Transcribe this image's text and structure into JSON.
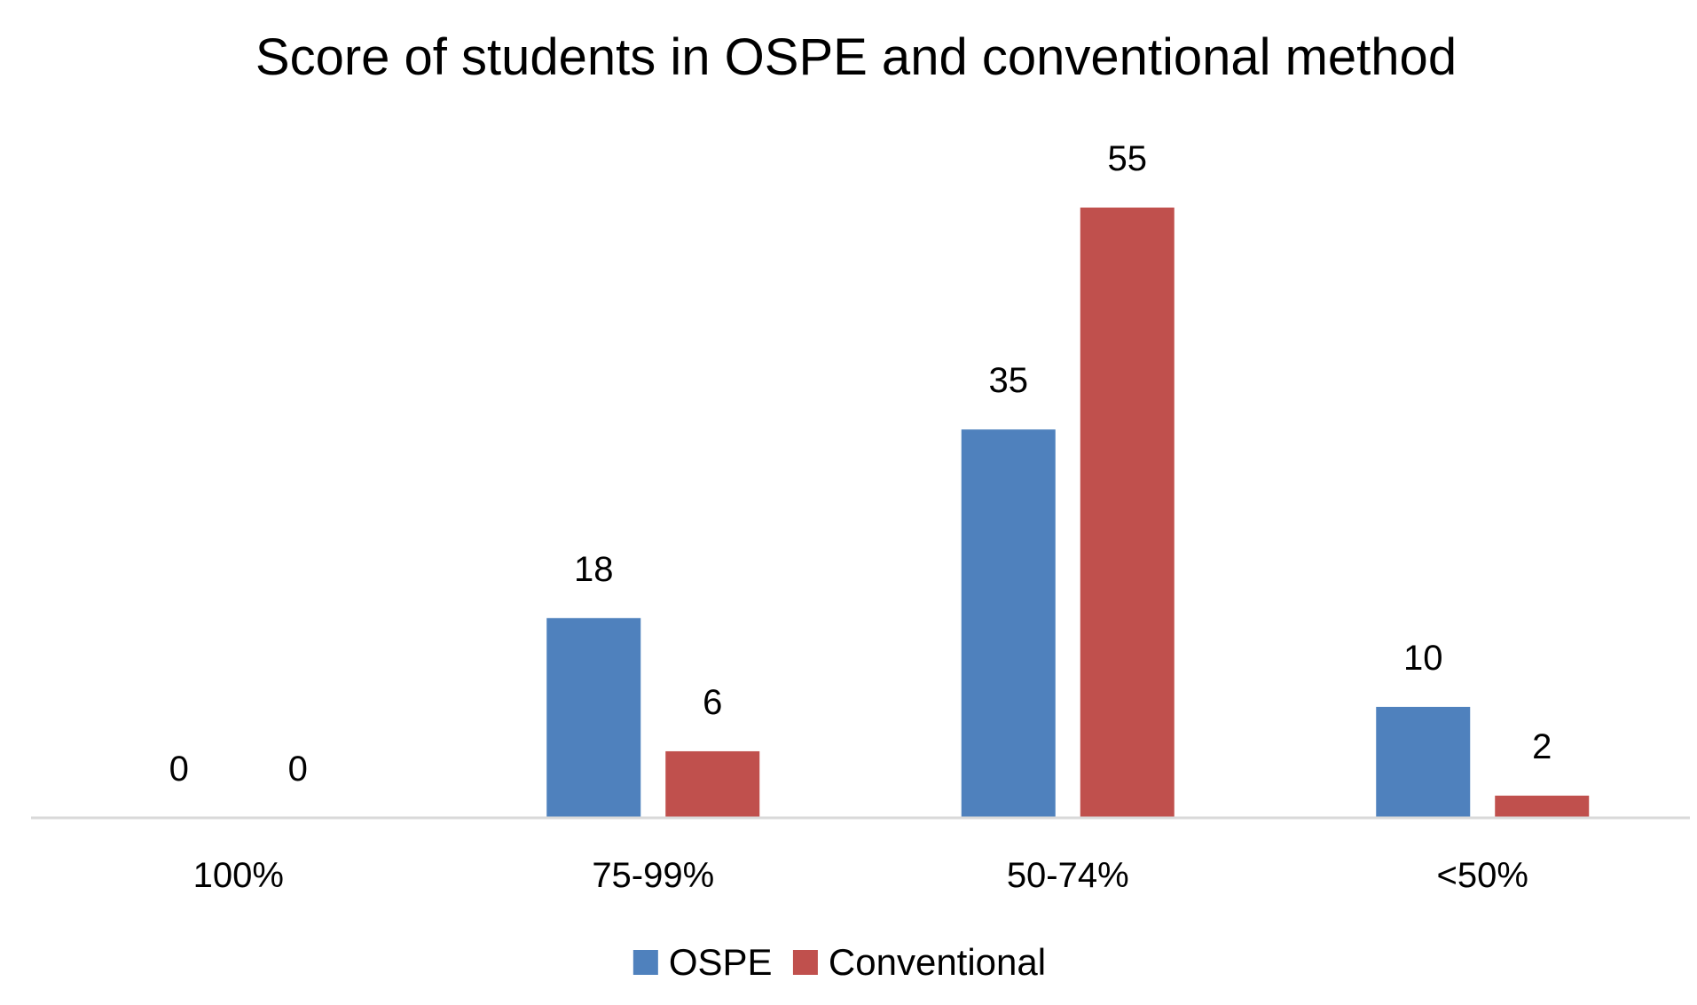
{
  "chart_data": {
    "type": "bar",
    "title": "Score of students in OSPE and conventional method",
    "categories": [
      "100%",
      "75-99%",
      "50-74%",
      "<50%"
    ],
    "series": [
      {
        "name": "OSPE",
        "color": "#4F81BD",
        "values": [
          0,
          18,
          35,
          10
        ]
      },
      {
        "name": "Conventional",
        "color": "#C0504D",
        "values": [
          0,
          6,
          55,
          2
        ]
      }
    ],
    "xlabel": "",
    "ylabel": "",
    "ylim": [
      0,
      60
    ],
    "data_labels": true,
    "grid": false,
    "legend": "bottom-center",
    "axis_color": "#D9D9D9"
  }
}
